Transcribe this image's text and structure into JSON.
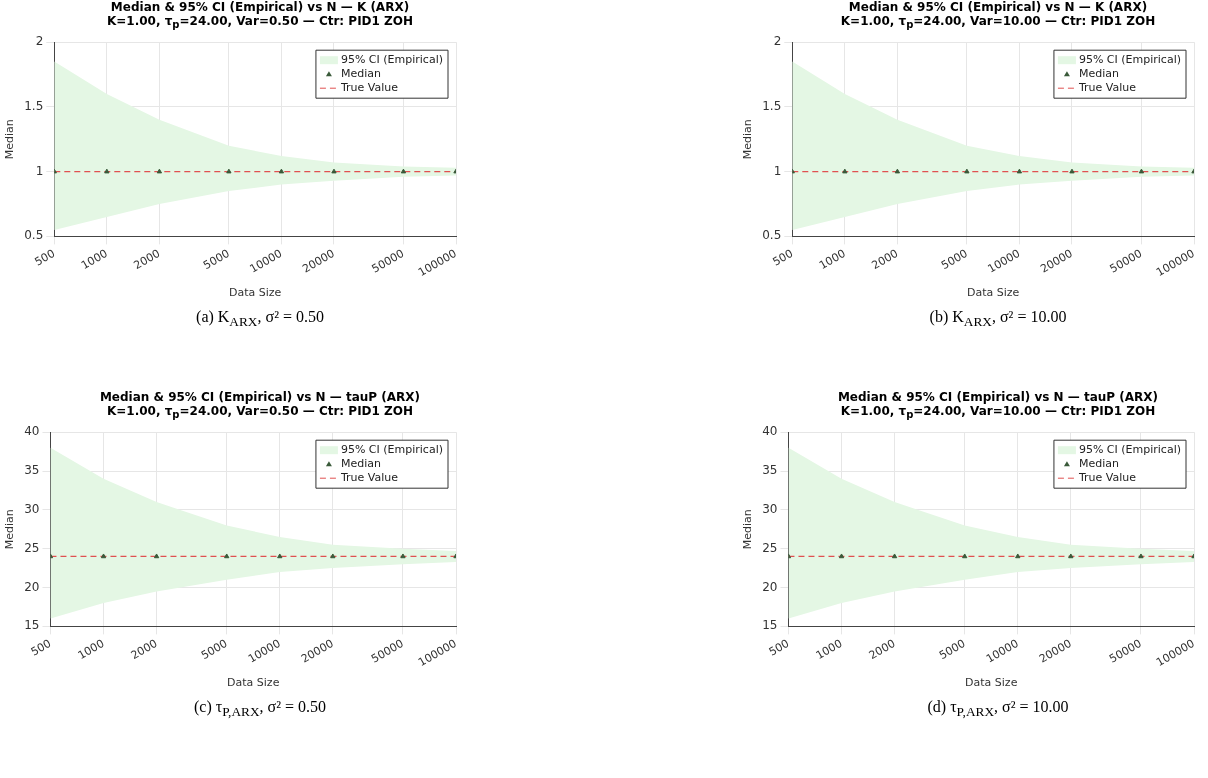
{
  "chart_data": [
    {
      "type": "scatter",
      "title": "Median & 95% CI (Empirical) vs N — K (ARX)",
      "subtitle": "K=1.00, τ$_{p}$=24.00, Var=0.50 — Ctr: PID1 ZOH",
      "xlabel": "Data Size",
      "ylabel": "Median",
      "annotations": [
        "(a) K$_{ARX}$,  σ² = 0.50"
      ],
      "log": "x",
      "xlim": [
        500,
        100000
      ],
      "xticks": [
        500,
        1000,
        2000,
        5000,
        10000,
        20000,
        50000,
        100000
      ],
      "ylim": [
        0.5,
        2
      ],
      "yticks": [
        0.5,
        1,
        1.5,
        2
      ],
      "grid": true,
      "legend": "top right",
      "series": [
        {
          "name": "95% CI (Empirical)",
          "type": "line",
          "marker": "none",
          "color": "#e4f7e4",
          "x": [
            500,
            1000,
            2000,
            5000,
            10000,
            20000,
            50000,
            100000
          ],
          "values": [
            null,
            null,
            null,
            null,
            null,
            null,
            null,
            null
          ],
          "lower": [
            0.55,
            0.65,
            0.75,
            0.85,
            0.9,
            0.93,
            0.96,
            0.97
          ],
          "upper": [
            1.85,
            1.6,
            1.4,
            1.2,
            1.12,
            1.07,
            1.04,
            1.03
          ]
        },
        {
          "name": "Median",
          "marker": "triangle",
          "color": "#3a5a3a",
          "x": [
            500,
            1000,
            2000,
            5000,
            10000,
            20000,
            50000,
            100000
          ],
          "values": [
            1,
            1,
            1,
            1,
            1,
            1,
            1,
            1
          ]
        },
        {
          "name": "True Value",
          "type": "line",
          "marker": "none",
          "color": "#e05050",
          "line_style": "dashed",
          "x": [
            500,
            100000
          ],
          "values": [
            1,
            1
          ]
        }
      ]
    },
    {
      "type": "scatter",
      "title": "Median & 95% CI (Empirical) vs N — K (ARX)",
      "subtitle": "K=1.00, τ$_{p}$=24.00, Var=10.00 — Ctr: PID1 ZOH",
      "xlabel": "Data Size",
      "ylabel": "Median",
      "annotations": [
        "(b) K$_{ARX}$,  σ² = 10.00"
      ],
      "log": "x",
      "xlim": [
        500,
        100000
      ],
      "xticks": [
        500,
        1000,
        2000,
        5000,
        10000,
        20000,
        50000,
        100000
      ],
      "ylim": [
        0.5,
        2
      ],
      "yticks": [
        0.5,
        1,
        1.5,
        2
      ],
      "grid": true,
      "legend": "top right",
      "series": [
        {
          "name": "95% CI (Empirical)",
          "type": "line",
          "marker": "none",
          "color": "#e4f7e4",
          "x": [
            500,
            1000,
            2000,
            5000,
            10000,
            20000,
            50000,
            100000
          ],
          "values": [
            null,
            null,
            null,
            null,
            null,
            null,
            null,
            null
          ],
          "lower": [
            0.55,
            0.65,
            0.75,
            0.85,
            0.9,
            0.93,
            0.96,
            0.97
          ],
          "upper": [
            1.85,
            1.6,
            1.4,
            1.2,
            1.12,
            1.07,
            1.04,
            1.03
          ]
        },
        {
          "name": "Median",
          "marker": "triangle",
          "color": "#3a5a3a",
          "x": [
            500,
            1000,
            2000,
            5000,
            10000,
            20000,
            50000,
            100000
          ],
          "values": [
            1,
            1,
            1,
            1,
            1,
            1,
            1,
            1
          ]
        },
        {
          "name": "True Value",
          "type": "line",
          "marker": "none",
          "color": "#e05050",
          "line_style": "dashed",
          "x": [
            500,
            100000
          ],
          "values": [
            1,
            1
          ]
        }
      ]
    },
    {
      "type": "scatter",
      "title": "Median & 95% CI (Empirical) vs N — tauP (ARX)",
      "subtitle": "K=1.00, τ$_{p}$=24.00, Var=0.50 — Ctr: PID1 ZOH",
      "xlabel": "Data Size",
      "ylabel": "Median",
      "annotations": [
        "(c) τ$_{P,ARX}$,  σ² = 0.50"
      ],
      "log": "x",
      "xlim": [
        500,
        100000
      ],
      "xticks": [
        500,
        1000,
        2000,
        5000,
        10000,
        20000,
        50000,
        100000
      ],
      "ylim": [
        15,
        40
      ],
      "yticks": [
        15,
        20,
        25,
        30,
        35,
        40
      ],
      "grid": true,
      "legend": "top right",
      "series": [
        {
          "name": "95% CI (Empirical)",
          "type": "line",
          "marker": "none",
          "color": "#e4f7e4",
          "x": [
            500,
            1000,
            2000,
            5000,
            10000,
            20000,
            50000,
            100000
          ],
          "values": [
            null,
            null,
            null,
            null,
            null,
            null,
            null,
            null
          ],
          "lower": [
            16,
            18,
            19.5,
            21,
            22,
            22.5,
            23,
            23.3
          ],
          "upper": [
            38,
            34,
            31,
            28,
            26.5,
            25.5,
            25,
            24.7
          ]
        },
        {
          "name": "Median",
          "marker": "triangle",
          "color": "#3a5a3a",
          "x": [
            500,
            1000,
            2000,
            5000,
            10000,
            20000,
            50000,
            100000
          ],
          "values": [
            24,
            24,
            24,
            24,
            24,
            24,
            24,
            24
          ]
        },
        {
          "name": "True Value",
          "type": "line",
          "marker": "none",
          "color": "#e05050",
          "line_style": "dashed",
          "x": [
            500,
            100000
          ],
          "values": [
            24,
            24
          ]
        }
      ]
    },
    {
      "type": "scatter",
      "title": "Median & 95% CI (Empirical) vs N — tauP (ARX)",
      "subtitle": "K=1.00, τ$_{p}$=24.00, Var=10.00 — Ctr: PID1 ZOH",
      "xlabel": "Data Size",
      "ylabel": "Median",
      "annotations": [
        "(d) τ$_{P,ARX}$,  σ² = 10.00"
      ],
      "log": "x",
      "xlim": [
        500,
        100000
      ],
      "xticks": [
        500,
        1000,
        2000,
        5000,
        10000,
        20000,
        50000,
        100000
      ],
      "ylim": [
        15,
        40
      ],
      "yticks": [
        15,
        20,
        25,
        30,
        35,
        40
      ],
      "grid": true,
      "legend": "top right",
      "series": [
        {
          "name": "95% CI (Empirical)",
          "type": "line",
          "marker": "none",
          "color": "#e4f7e4",
          "x": [
            500,
            1000,
            2000,
            5000,
            10000,
            20000,
            50000,
            100000
          ],
          "values": [
            null,
            null,
            null,
            null,
            null,
            null,
            null,
            null
          ],
          "lower": [
            16,
            18,
            19.5,
            21,
            22,
            22.5,
            23,
            23.3
          ],
          "upper": [
            38,
            34,
            31,
            28,
            26.5,
            25.5,
            25,
            24.7
          ]
        },
        {
          "name": "Median",
          "marker": "triangle",
          "color": "#3a5a3a",
          "x": [
            500,
            1000,
            2000,
            5000,
            10000,
            20000,
            50000,
            100000
          ],
          "values": [
            24,
            24,
            24,
            24,
            24,
            24,
            24,
            24
          ]
        },
        {
          "name": "True Value",
          "type": "line",
          "marker": "none",
          "color": "#e05050",
          "line_style": "dashed",
          "x": [
            500,
            100000
          ],
          "values": [
            24,
            24
          ]
        }
      ]
    }
  ]
}
